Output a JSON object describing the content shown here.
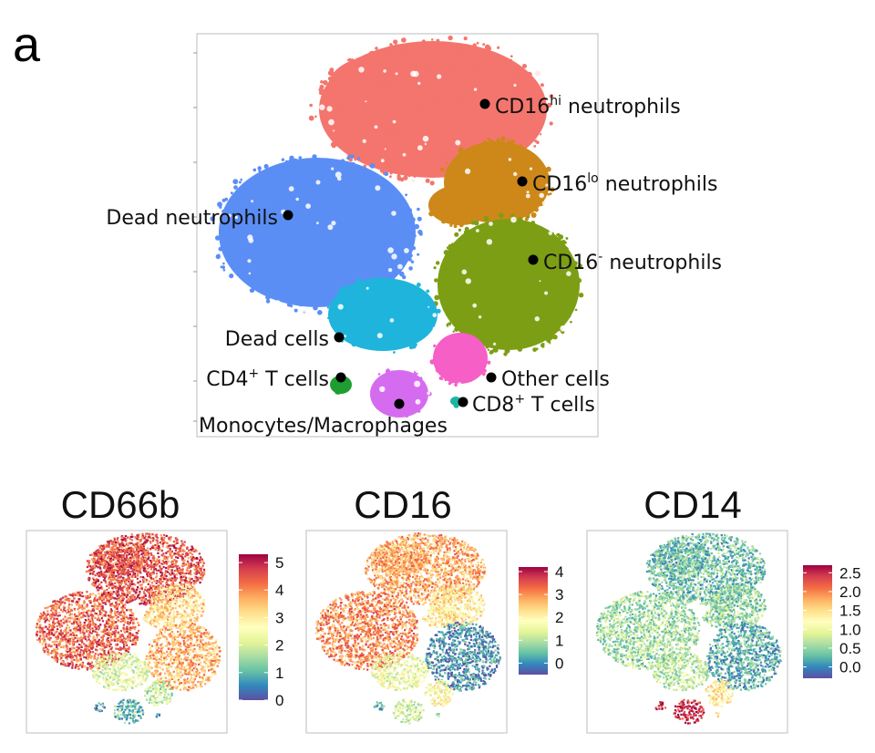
{
  "panel_letter": "a",
  "chart_data": [
    {
      "type": "scatter",
      "title": "",
      "xlabel": "",
      "ylabel": "",
      "clusters": [
        {
          "key": "cd16hi",
          "name_main": "CD16",
          "name_sup": "hi",
          "name_rest": " neutrophils",
          "color": "#F4756D"
        },
        {
          "key": "cd16lo",
          "name_main": "CD16",
          "name_sup": "lo",
          "name_rest": " neutrophils",
          "color": "#CD8819"
        },
        {
          "key": "cd16neg",
          "name_main": "CD16",
          "name_sup": "-",
          "name_rest": " neutrophils",
          "color": "#7C9E14"
        },
        {
          "key": "dead_neutrophils",
          "name_main": "Dead neutrophils",
          "name_sup": "",
          "name_rest": "",
          "color": "#5B8EF5"
        },
        {
          "key": "dead_cells",
          "name_main": "Dead cells",
          "name_sup": "",
          "name_rest": "",
          "color": "#1FB4DB"
        },
        {
          "key": "cd4",
          "name_main": "CD4",
          "name_sup": "+",
          "name_rest": " T cells",
          "color": "#1E9E30"
        },
        {
          "key": "mono",
          "name_main": "Monocytes/Macrophages",
          "name_sup": "",
          "name_rest": "",
          "color": "#D56CF0"
        },
        {
          "key": "cd8",
          "name_main": "CD8",
          "name_sup": "+",
          "name_rest": " T cells",
          "color": "#1CB5A0"
        },
        {
          "key": "other",
          "name_main": "Other cells",
          "name_sup": "",
          "name_rest": "",
          "color": "#F55FC6"
        }
      ]
    },
    {
      "type": "heatmap",
      "title": "CD66b",
      "colorbar_ticks": [
        "0",
        "1",
        "2",
        "3",
        "4",
        "5"
      ],
      "range": [
        0,
        5.3
      ]
    },
    {
      "type": "heatmap",
      "title": "CD16",
      "colorbar_ticks": [
        "0",
        "1",
        "2",
        "3",
        "4"
      ],
      "range": [
        -0.5,
        4.2
      ]
    },
    {
      "type": "heatmap",
      "title": "CD14",
      "colorbar_ticks": [
        "0.0",
        "0.5",
        "1.0",
        "1.5",
        "2.0",
        "2.5"
      ],
      "range": [
        -0.3,
        2.7
      ]
    }
  ],
  "colormap": [
    "#5E4FA2",
    "#3288BD",
    "#66C2A5",
    "#ABDDA4",
    "#E6F598",
    "#FFFFBF",
    "#FEE08B",
    "#FDAE61",
    "#F46D43",
    "#D53E4F",
    "#9E0142"
  ]
}
